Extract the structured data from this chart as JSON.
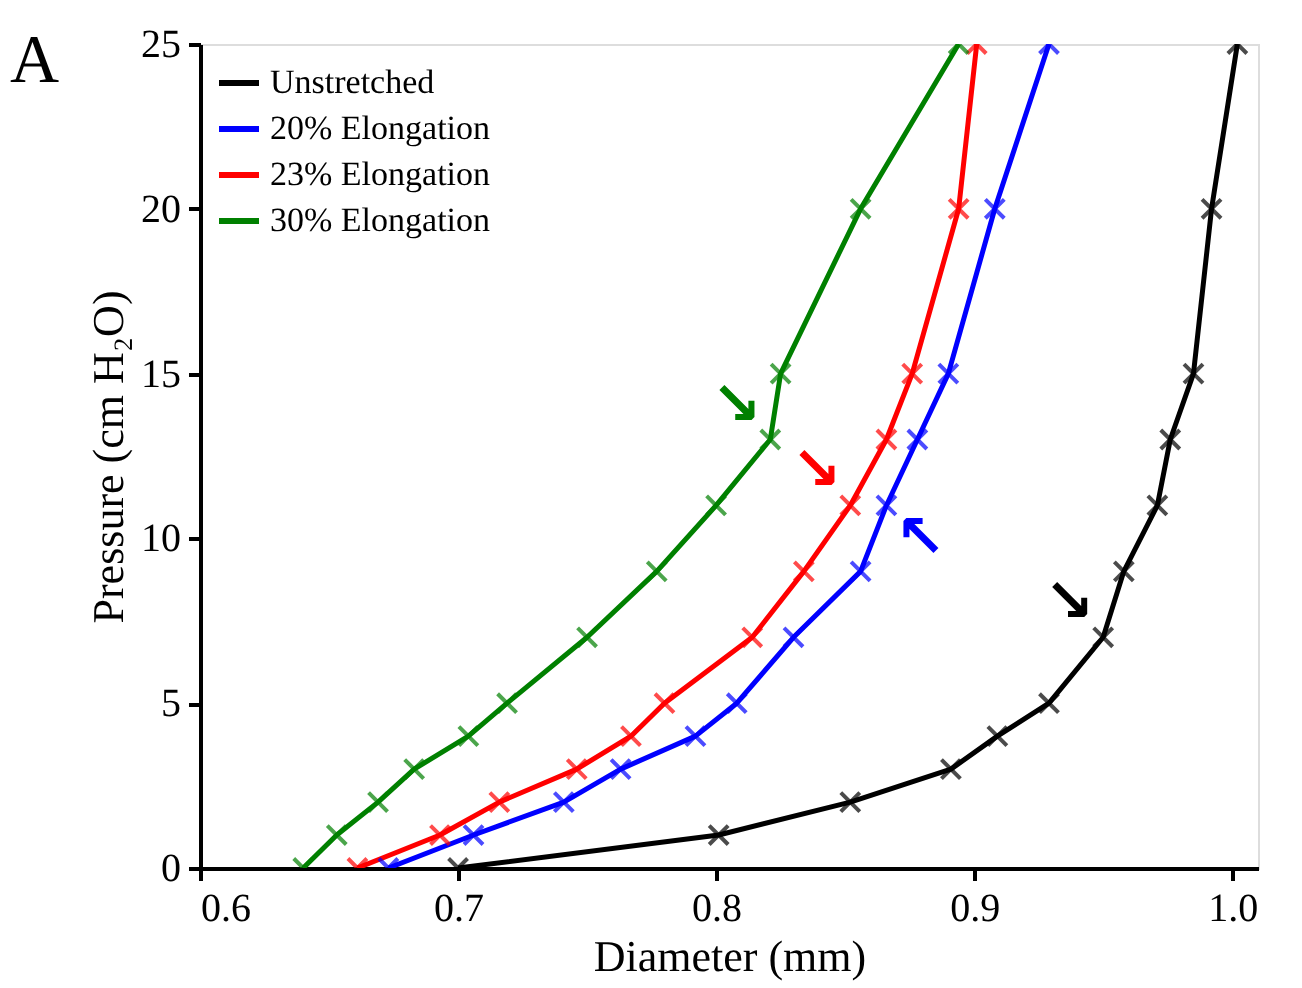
{
  "chart_data": {
    "type": "line",
    "xlabel": "Diameter (mm)",
    "ylabel": "Pressure (cm H₂O)",
    "xlim": [
      0.6,
      1.01
    ],
    "ylim": [
      0,
      25
    ],
    "xticks": [
      0.6,
      0.7,
      0.8,
      0.9,
      {
        "value": 1,
        "label": "1.0"
      }
    ],
    "yticks": [
      0,
      5,
      10,
      15,
      20,
      25
    ],
    "grid": false,
    "legend": "top left",
    "marker": "cross",
    "line_style": "solid",
    "annotations": [
      "A",
      {
        "text": "↘",
        "x": 0.821,
        "y": 13
      },
      {
        "text": "↘",
        "x": 0.852,
        "y": 11
      },
      {
        "text": "↖",
        "x": 0.866,
        "y": 11
      },
      {
        "text": "↘",
        "x": 0.95,
        "y": 7
      }
    ],
    "series": [
      {
        "name": "Unstretched",
        "color": "#000000",
        "x": [
          0.7,
          0.801,
          0.852,
          0.891,
          0.909,
          0.929,
          0.95,
          0.958,
          0.971,
          0.976,
          0.985,
          0.992,
          1.002
        ],
        "values": [
          0,
          1,
          2,
          3,
          4,
          5,
          7,
          9,
          11,
          13,
          15,
          20,
          25
        ]
      },
      {
        "name": "20% Elongation",
        "color": "#0000ff",
        "x": [
          0.673,
          0.706,
          0.741,
          0.763,
          0.792,
          0.808,
          0.83,
          0.856,
          0.866,
          0.878,
          0.89,
          0.908,
          0.929
        ],
        "values": [
          0,
          1,
          2,
          3,
          4,
          5,
          7,
          9,
          11,
          13,
          15,
          20,
          25
        ]
      },
      {
        "name": "23% Elongation",
        "color": "#ff0000",
        "x": [
          0.661,
          0.693,
          0.716,
          0.746,
          0.767,
          0.78,
          0.814,
          0.834,
          0.852,
          0.866,
          0.876,
          0.894,
          0.901
        ],
        "values": [
          0,
          1,
          2,
          3,
          4,
          5,
          7,
          9,
          11,
          13,
          15,
          20,
          25
        ]
      },
      {
        "name": "30% Elongation",
        "color": "#008000",
        "x": [
          0.64,
          0.653,
          0.669,
          0.683,
          0.704,
          0.719,
          0.75,
          0.777,
          0.8,
          0.821,
          0.825,
          0.856,
          0.894
        ],
        "values": [
          0,
          1,
          2,
          3,
          4,
          5,
          7,
          9,
          11,
          13,
          15,
          20,
          25
        ]
      }
    ]
  }
}
